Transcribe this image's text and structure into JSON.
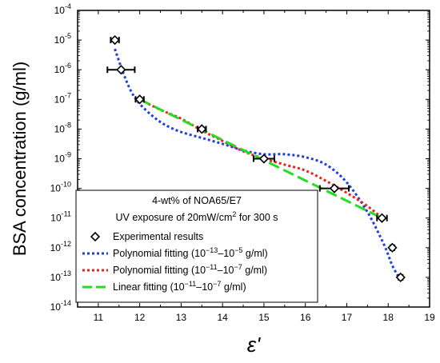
{
  "chart_data": {
    "type": "scatter",
    "title": "",
    "xlabel": "ε'",
    "ylabel": "BSA concentration (g/ml)",
    "xlim": [
      10.5,
      19
    ],
    "ylim_log10": [
      -14,
      -4
    ],
    "yscale": "log",
    "x_ticks": [
      11,
      12,
      13,
      14,
      15,
      16,
      17,
      18,
      19
    ],
    "y_tick_exponents": [
      -14,
      -13,
      -12,
      -11,
      -10,
      -9,
      -8,
      -7,
      -6,
      -5,
      -4
    ],
    "y_tick_base": "10",
    "grid": false,
    "legend_position": "bottom-left",
    "legend": {
      "title_line1": "4-wt% of NOA65/E7",
      "title_line2_prefix": "UV exposure of 20mW/cm",
      "title_line2_sup": "2",
      "title_line2_suffix": " for 300 s"
    },
    "series": [
      {
        "name": "Experimental results",
        "kind": "markers",
        "marker": "diamond",
        "color": "#000000",
        "points": [
          {
            "x": 11.4,
            "y": 1e-05,
            "xerr": 0.1
          },
          {
            "x": 11.55,
            "y": 1e-06,
            "xerr": 0.33
          },
          {
            "x": 12.0,
            "y": 1e-07,
            "xerr": 0.1
          },
          {
            "x": 13.5,
            "y": 1e-08,
            "xerr": 0.1
          },
          {
            "x": 15.0,
            "y": 1e-09,
            "xerr": 0.25
          },
          {
            "x": 16.7,
            "y": 1e-10,
            "xerr": 0.35
          },
          {
            "x": 17.85,
            "y": 1e-11,
            "xerr": 0.12
          },
          {
            "x": 18.1,
            "y": 1e-12,
            "xerr": 0.05
          },
          {
            "x": 18.3,
            "y": 1e-13,
            "xerr": 0.05
          }
        ]
      },
      {
        "name": "Polynomial fitting (10⁻¹³–10⁻⁵ g/ml)",
        "label_main": "Polynomial fitting (10",
        "label_sup1": "−13",
        "label_mid": "–10",
        "label_sup2": "−5",
        "label_end": " g/ml)",
        "kind": "line",
        "style": "dotted",
        "color": "#1f3fe0",
        "x": [
          11.4,
          11.6,
          11.8,
          12.0,
          12.3,
          12.6,
          13.0,
          13.5,
          14.0,
          14.5,
          15.0,
          15.5,
          16.0,
          16.5,
          17.0,
          17.5,
          17.9,
          18.1,
          18.3
        ],
        "y_log10": [
          -5.3,
          -6.1,
          -6.75,
          -7.15,
          -7.55,
          -7.85,
          -8.1,
          -8.3,
          -8.5,
          -8.72,
          -8.85,
          -8.85,
          -8.95,
          -9.2,
          -9.8,
          -10.8,
          -11.9,
          -12.6,
          -13.1
        ]
      },
      {
        "name": "Polynomial fitting (10⁻¹¹–10⁻⁷ g/ml)",
        "label_main": "Polynomial fitting (10",
        "label_sup1": "−11",
        "label_mid": "–10",
        "label_sup2": "−7",
        "label_end": " g/ml)",
        "kind": "line",
        "style": "dotted",
        "color": "#ee2020",
        "x": [
          12.0,
          12.5,
          13.0,
          13.5,
          14.0,
          14.5,
          15.0,
          15.5,
          16.0,
          16.5,
          17.0,
          17.5,
          17.85
        ],
        "y_log10": [
          -7.0,
          -7.35,
          -7.65,
          -8.05,
          -8.4,
          -8.75,
          -9.0,
          -9.2,
          -9.4,
          -9.75,
          -10.15,
          -10.6,
          -11.0
        ]
      },
      {
        "name": "Linear fitting (10⁻¹¹–10⁻⁷ g/ml)",
        "label_main": "Linear fitting (10",
        "label_sup1": "−11",
        "label_mid": "–10",
        "label_sup2": "−7",
        "label_end": " g/ml)",
        "kind": "line",
        "style": "dashed",
        "color": "#22dd22",
        "x": [
          12.0,
          17.85
        ],
        "y_log10": [
          -7.0,
          -11.0
        ]
      }
    ]
  }
}
